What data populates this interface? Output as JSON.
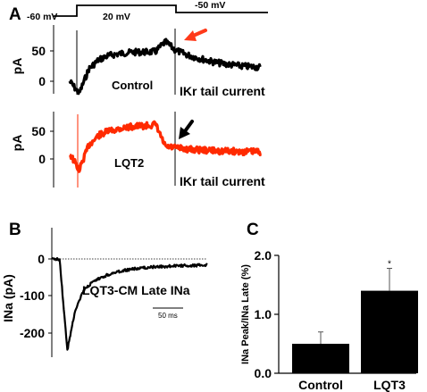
{
  "panels": {
    "a": {
      "letter": "A"
    },
    "b": {
      "letter": "B"
    },
    "c": {
      "letter": "C"
    }
  },
  "protocol": {
    "v_hold": "-60 mV",
    "v_step": "20 mV",
    "v_tail": "-50 mV"
  },
  "colors": {
    "control_trace": "#000000",
    "lqt2_trace": "#ff2a00",
    "red_arrow": "#ff3a1a",
    "black_arrow": "#000000",
    "bar": "#000000"
  },
  "chart_data": [
    {
      "id": "A-control",
      "type": "line",
      "ylabel": "pA",
      "yticks": [
        "50",
        "0"
      ],
      "ylim": [
        -25,
        75
      ],
      "trace_label": "Control",
      "annotation": "IKr tail current",
      "arrow_color": "red",
      "series": [
        {
          "name": "Control",
          "values": [
            0,
            -20,
            20,
            35,
            42,
            45,
            47,
            48,
            48,
            49,
            65,
            52,
            45,
            40,
            36,
            32,
            29,
            27,
            25,
            24,
            23
          ]
        }
      ]
    },
    {
      "id": "A-lqt2",
      "type": "line",
      "ylabel": "pA",
      "yticks": [
        "50",
        "0"
      ],
      "ylim": [
        -25,
        75
      ],
      "trace_label": "LQT2",
      "annotation": "IKr tail current",
      "arrow_color": "black",
      "series": [
        {
          "name": "LQT2",
          "values": [
            10,
            -20,
            25,
            42,
            50,
            54,
            57,
            59,
            60,
            62,
            22,
            20,
            18,
            17,
            16,
            15,
            14,
            14,
            13,
            13,
            13
          ]
        }
      ]
    },
    {
      "id": "B",
      "type": "line",
      "ylabel": "INa (pA)",
      "yticks": [
        "0",
        "-100",
        "-200"
      ],
      "ylim": [
        -250,
        20
      ],
      "trace_label": "LQT3-CM Late INa",
      "scale_bar": "50 ms",
      "series": [
        {
          "name": "LQT3-CM Late INa",
          "values": [
            0,
            0,
            -250,
            -140,
            -90,
            -68,
            -55,
            -45,
            -38,
            -33,
            -29,
            -26,
            -24,
            -22,
            -21,
            -20,
            -19,
            -18,
            -18,
            -17,
            -17
          ]
        }
      ]
    },
    {
      "id": "C",
      "type": "bar",
      "ylabel": "INa Peak/INa Late (%)",
      "yticks": [
        "0.0",
        "1.0",
        "2.0"
      ],
      "ylim": [
        0,
        2.0
      ],
      "categories": [
        "Control",
        "LQT3"
      ],
      "values": [
        0.5,
        1.4
      ],
      "errors": [
        0.2,
        0.38
      ],
      "significance": [
        "",
        "*"
      ]
    }
  ]
}
